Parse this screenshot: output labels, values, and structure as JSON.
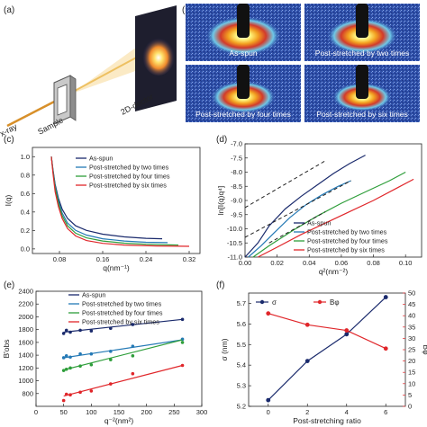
{
  "panels": {
    "a": {
      "label": "(a)",
      "xray_label": "x-ray",
      "sample_label": "Sample",
      "detector_label": "2D-dector"
    },
    "b": {
      "label": "(b)",
      "images": [
        {
          "caption": "As-spun"
        },
        {
          "caption": "Post-stretched by two times"
        },
        {
          "caption": "Post-stretched by four times"
        },
        {
          "caption": "Post-stretched by six times"
        }
      ]
    }
  },
  "colors": {
    "as_spun": "#1a2a6c",
    "two_times": "#2479b5",
    "four_times": "#2e9e3a",
    "six_times": "#e0262a",
    "saxs_background": "#2e4fa8"
  },
  "chart_data": [
    {
      "panel_label": "(c)",
      "type": "line",
      "xlabel": "q(nm⁻¹)",
      "ylabel": "I(q)",
      "xlim": [
        0.03,
        0.34
      ],
      "ylim": [
        -0.05,
        1.1
      ],
      "xticks": [
        "0.08",
        "0.16",
        "0.24",
        "0.32"
      ],
      "yticks": [
        "0.0",
        "0.2",
        "0.4",
        "0.6",
        "0.8",
        "1.0"
      ],
      "legend": [
        "As-spun",
        "Post-stretched by two times",
        "Post-stretched by four times",
        "Post-stretched by six times"
      ],
      "series": [
        {
          "name": "As-spun",
          "x": [
            0.065,
            0.068,
            0.072,
            0.078,
            0.085,
            0.095,
            0.11,
            0.13,
            0.16,
            0.2,
            0.24,
            0.27
          ],
          "y": [
            1.0,
            0.86,
            0.7,
            0.55,
            0.43,
            0.33,
            0.25,
            0.2,
            0.16,
            0.13,
            0.115,
            0.11
          ]
        },
        {
          "name": "Post-stretched by two times",
          "x": [
            0.065,
            0.068,
            0.072,
            0.078,
            0.085,
            0.095,
            0.11,
            0.13,
            0.16,
            0.2,
            0.24,
            0.28
          ],
          "y": [
            1.0,
            0.85,
            0.68,
            0.52,
            0.39,
            0.28,
            0.2,
            0.15,
            0.11,
            0.085,
            0.072,
            0.068
          ]
        },
        {
          "name": "Post-stretched by four times",
          "x": [
            0.065,
            0.068,
            0.072,
            0.078,
            0.085,
            0.095,
            0.11,
            0.13,
            0.16,
            0.2,
            0.24,
            0.3
          ],
          "y": [
            1.0,
            0.84,
            0.66,
            0.5,
            0.36,
            0.25,
            0.17,
            0.12,
            0.085,
            0.062,
            0.05,
            0.042
          ]
        },
        {
          "name": "Post-stretched by six times",
          "x": [
            0.065,
            0.068,
            0.072,
            0.078,
            0.085,
            0.095,
            0.11,
            0.13,
            0.16,
            0.2,
            0.26,
            0.32
          ],
          "y": [
            1.0,
            0.82,
            0.62,
            0.46,
            0.33,
            0.22,
            0.14,
            0.09,
            0.06,
            0.042,
            0.032,
            0.028
          ]
        }
      ]
    },
    {
      "panel_label": "(d)",
      "type": "line",
      "xlabel": "q²(nm⁻²)",
      "ylabel": "ln[I(q)q⁴]",
      "xlim": [
        0.0,
        0.11
      ],
      "ylim": [
        -11.0,
        -7.0
      ],
      "xticks": [
        "0.00",
        "0.02",
        "0.04",
        "0.06",
        "0.08",
        "0.10"
      ],
      "yticks": [
        "-7.0",
        "-7.5",
        "-8.0",
        "-8.5",
        "-9.0",
        "-9.5",
        "-10.0",
        "-10.5",
        "-11.0"
      ],
      "legend": [
        "As-spun",
        "Post-stretched by two times",
        "Post-stretched by four times",
        "Post-stretched by six times"
      ],
      "series": [
        {
          "name": "As-spun",
          "x": [
            0.0,
            0.008,
            0.015,
            0.025,
            0.035,
            0.045,
            0.055,
            0.065,
            0.075
          ],
          "y": [
            -11.0,
            -10.5,
            -9.9,
            -9.3,
            -8.85,
            -8.45,
            -8.05,
            -7.7,
            -7.4
          ]
        },
        {
          "name": "Post-stretched by two times",
          "x": [
            0.002,
            0.01,
            0.018,
            0.028,
            0.038,
            0.048,
            0.058,
            0.066
          ],
          "y": [
            -11.0,
            -10.6,
            -10.15,
            -9.6,
            -9.15,
            -8.8,
            -8.5,
            -8.3
          ]
        },
        {
          "name": "Post-stretched by four times",
          "x": [
            0.005,
            0.015,
            0.03,
            0.045,
            0.06,
            0.075,
            0.09,
            0.1
          ],
          "y": [
            -11.0,
            -10.6,
            -10.05,
            -9.55,
            -9.1,
            -8.7,
            -8.3,
            -8.0
          ]
        },
        {
          "name": "Post-stretched by six times",
          "x": [
            0.008,
            0.02,
            0.035,
            0.05,
            0.065,
            0.08,
            0.095,
            0.105
          ],
          "y": [
            -11.0,
            -10.65,
            -10.2,
            -9.8,
            -9.4,
            -9.0,
            -8.55,
            -8.25
          ]
        }
      ],
      "fits": [
        {
          "x": [
            0.0,
            0.05
          ],
          "y": [
            -9.25,
            -7.6
          ]
        },
        {
          "x": [
            0.0,
            0.066
          ],
          "y": [
            -10.3,
            -8.3
          ]
        },
        {
          "x": [
            0.015,
            0.05
          ],
          "y": [
            -10.5,
            -9.4
          ]
        }
      ]
    },
    {
      "panel_label": "(e)",
      "type": "scatter",
      "xlabel": "q⁻²(nm²)",
      "ylabel": "B'obs",
      "xlim": [
        0,
        300
      ],
      "ylim": [
        600,
        2400
      ],
      "xticks": [
        "0",
        "50",
        "100",
        "150",
        "200",
        "250",
        "300"
      ],
      "yticks": [
        "800",
        "1000",
        "1200",
        "1400",
        "1600",
        "1800",
        "2000",
        "2200",
        "2400"
      ],
      "legend": [
        "As-spun",
        "Post-stretched by two times",
        "Post-stretched by four times",
        "Post-stretched by six times"
      ],
      "series": [
        {
          "name": "As-spun",
          "x": [
            50,
            55,
            62,
            80,
            100,
            135,
            175,
            265
          ],
          "y": [
            1740,
            1790,
            1760,
            1790,
            1780,
            1820,
            1880,
            1960
          ],
          "fit": [
            1760,
            1960
          ]
        },
        {
          "name": "Post-stretched by two times",
          "x": [
            50,
            55,
            62,
            80,
            100,
            135,
            175,
            265
          ],
          "y": [
            1360,
            1390,
            1370,
            1420,
            1420,
            1460,
            1540,
            1650
          ],
          "fit": [
            1360,
            1640
          ]
        },
        {
          "name": "Post-stretched by four times",
          "x": [
            50,
            55,
            62,
            80,
            100,
            135,
            175,
            265
          ],
          "y": [
            1160,
            1180,
            1200,
            1230,
            1250,
            1330,
            1390,
            1600
          ],
          "fit": [
            1170,
            1640
          ]
        },
        {
          "name": "Post-stretched by six times",
          "x": [
            50,
            55,
            62,
            80,
            100,
            135,
            175,
            265
          ],
          "y": [
            690,
            790,
            780,
            820,
            840,
            950,
            1110,
            1240
          ],
          "fit": [
            760,
            1240
          ]
        }
      ]
    },
    {
      "panel_label": "(f)",
      "type": "line",
      "xlabel": "Post-stretching ratio",
      "ylabel": "σ (nm)",
      "ylabel_right": "Bφ",
      "xlim": [
        -1,
        7
      ],
      "ylim": [
        5.2,
        5.75
      ],
      "ylim_right": [
        0,
        50
      ],
      "xticks": [
        "0",
        "2",
        "4",
        "6"
      ],
      "yticks": [
        "5.2",
        "5.3",
        "5.4",
        "5.5",
        "5.6",
        "5.7"
      ],
      "yticks_right": [
        "0",
        "5",
        "10",
        "15",
        "20",
        "25",
        "30",
        "35",
        "40",
        "45",
        "50"
      ],
      "legend": [
        "σ",
        "Bφ"
      ],
      "series": [
        {
          "name": "σ",
          "x": [
            0,
            2,
            4,
            6
          ],
          "y": [
            5.23,
            5.42,
            5.55,
            5.73
          ]
        },
        {
          "name": "Bφ",
          "axis": "right",
          "x": [
            0,
            2,
            4,
            6
          ],
          "y": [
            41,
            36,
            33.5,
            25.5
          ]
        }
      ]
    }
  ]
}
